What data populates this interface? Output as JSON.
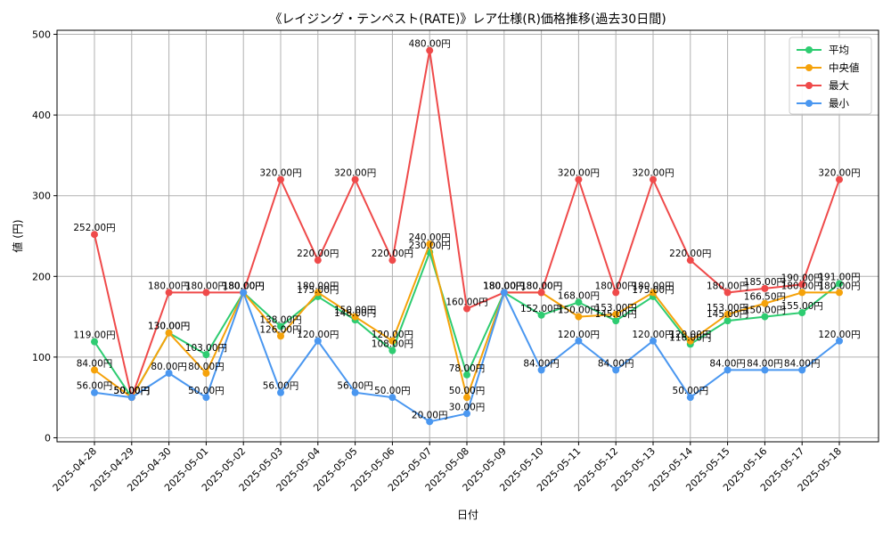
{
  "chart_data": {
    "type": "line",
    "title": "《レイジング・テンペスト(RATE)》レア仕様(R)価格推移(過去30日間)",
    "xlabel": "日付",
    "ylabel": "値 (円)",
    "ylim": [
      0,
      500
    ],
    "yticks": [
      0,
      100,
      200,
      300,
      400,
      500
    ],
    "grid": true,
    "legend_position": "top-right",
    "x": [
      "2025-04-28",
      "2025-04-29",
      "2025-04-30",
      "2025-05-01",
      "2025-05-02",
      "2025-05-03",
      "2025-05-04",
      "2025-05-05",
      "2025-05-06",
      "2025-05-07",
      "2025-05-08",
      "2025-05-09",
      "2025-05-10",
      "2025-05-11",
      "2025-05-12",
      "2025-05-13",
      "2025-05-14",
      "2025-05-15",
      "2025-05-16",
      "2025-05-17",
      "2025-05-18"
    ],
    "series": [
      {
        "name": "平均",
        "color": "#2ecc71",
        "values": [
          119,
          50,
          130,
          103,
          180,
          138,
          175,
          146,
          108,
          230,
          78,
          180,
          152,
          168,
          145,
          175,
          116,
          145,
          150,
          155,
          191
        ],
        "labels": [
          "119.00円",
          "50.00円",
          "130.00円",
          "103.00円",
          "180.00円",
          "138.00円",
          "175.00円",
          "146.00円",
          "108.00円",
          "230.00円",
          "78.00円",
          "180.00円",
          "152.00円",
          "168.00円",
          "145.00円",
          "175.00円",
          "116.00円",
          "145.00円",
          "150.00円",
          "155.00円",
          "191.00円"
        ]
      },
      {
        "name": "中央値",
        "color": "#f5a20a",
        "values": [
          84,
          50,
          130,
          80,
          180,
          126,
          180,
          150,
          120,
          240,
          50,
          180,
          180,
          150,
          153,
          180,
          120,
          153,
          166.5,
          180,
          180
        ],
        "labels": [
          "84.00円",
          "50.00円",
          "130.00円",
          "80.00円",
          "180.00円",
          "126.00円",
          "180.00円",
          "150.00円",
          "120.00円",
          "240.00円",
          "50.00円",
          "180.00円",
          "180.00円",
          "150.00円",
          "153.00円",
          "180.00円",
          "120.00円",
          "153.00円",
          "166.50円",
          "180.00円",
          "180.00円"
        ]
      },
      {
        "name": "最大",
        "color": "#ef4a4a",
        "values": [
          252,
          50,
          180,
          180,
          180,
          320,
          220,
          320,
          220,
          480,
          160,
          180,
          180,
          320,
          180,
          320,
          220,
          180,
          185,
          190,
          320
        ],
        "labels": [
          "252.00円",
          "50.00円",
          "180.00円",
          "180.00円",
          "180.00円",
          "320.00円",
          "220.00円",
          "320.00円",
          "220.00円",
          "480.00円",
          "160.00円",
          "180.00円",
          "180.00円",
          "320.00円",
          "180.00円",
          "320.00円",
          "220.00円",
          "180.00円",
          "185.00円",
          "190.00円",
          "320.00円"
        ]
      },
      {
        "name": "最小",
        "color": "#4a97f0",
        "values": [
          56,
          50,
          80,
          50,
          180,
          56,
          120,
          56,
          50,
          20,
          30,
          180,
          84,
          120,
          84,
          120,
          50,
          84,
          84,
          84,
          120
        ],
        "labels": [
          "56.00円",
          "50.00円",
          "80.00円",
          "50.00円",
          "180.00円",
          "56.00円",
          "120.00円",
          "56.00円",
          "50.00円",
          "20.00円",
          "30.00円",
          "180.00円",
          "84.00円",
          "120.00円",
          "84.00円",
          "120.00円",
          "50.00円",
          "84.00円",
          "84.00円",
          "84.00円",
          "120.00円"
        ]
      }
    ]
  }
}
